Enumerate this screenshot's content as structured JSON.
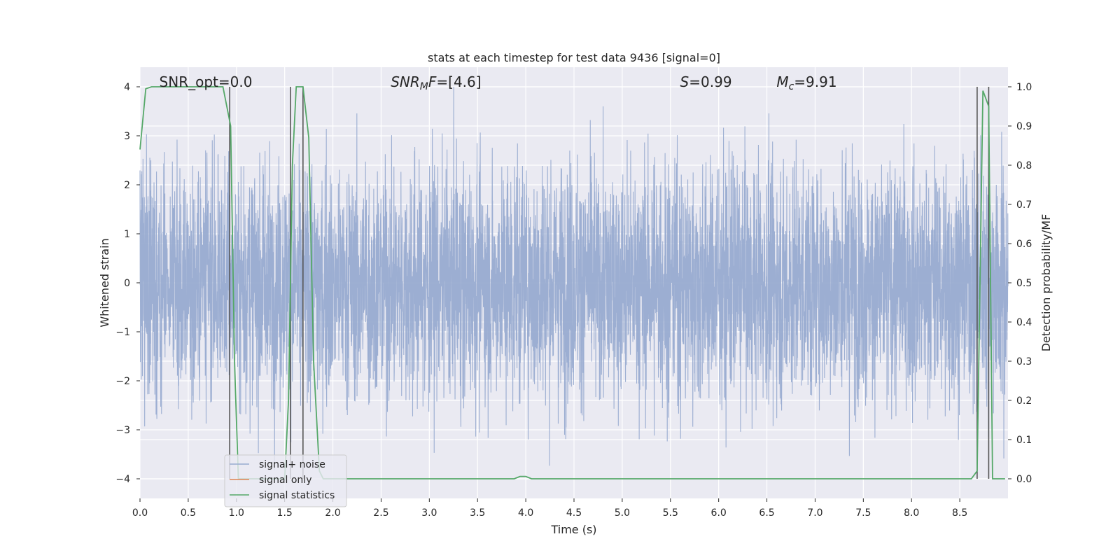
{
  "chart_data": {
    "type": "line",
    "title": "stats at each timestep for test data 9436 [signal=0]",
    "xlabel": "Time (s)",
    "ylabel": "Whitened strain",
    "ylabel_right": "Detection probability/MF",
    "xlim": [
      0.0,
      9.0
    ],
    "ylim": [
      -4.4,
      4.4
    ],
    "ylim_right": [
      -0.05,
      1.05
    ],
    "x_ticks": [
      "0.0",
      "0.5",
      "1.0",
      "1.5",
      "2.0",
      "2.5",
      "3.0",
      "3.5",
      "4.0",
      "4.5",
      "5.0",
      "5.5",
      "6.0",
      "6.5",
      "7.0",
      "7.5",
      "8.0",
      "8.5"
    ],
    "x_tick_values": [
      0.0,
      0.5,
      1.0,
      1.5,
      2.0,
      2.5,
      3.0,
      3.5,
      4.0,
      4.5,
      5.0,
      5.5,
      6.0,
      6.5,
      7.0,
      7.5,
      8.0,
      8.5
    ],
    "y_ticks": [
      "−4",
      "−3",
      "−2",
      "−1",
      "0",
      "1",
      "2",
      "3",
      "4"
    ],
    "y_tick_values": [
      -4,
      -3,
      -2,
      -1,
      0,
      1,
      2,
      3,
      4
    ],
    "y_right_ticks": [
      "0.0",
      "0.1",
      "0.2",
      "0.3",
      "0.4",
      "0.5",
      "0.6",
      "0.7",
      "0.8",
      "0.9",
      "1.0"
    ],
    "y_right_tick_values": [
      0.0,
      0.1,
      0.2,
      0.3,
      0.4,
      0.5,
      0.6,
      0.7,
      0.8,
      0.9,
      1.0
    ],
    "grid": true,
    "legend_position": "bottom-left",
    "annotations": [
      {
        "text": "SNR_opt=0.0",
        "x": 0.2
      },
      {
        "text": "SNR",
        "sub": "M",
        "suffix": "F=[4.6]",
        "italic": true,
        "x": 2.6
      },
      {
        "text": "S",
        "suffix": "=0.99",
        "italic": true,
        "x": 5.6
      },
      {
        "text": "M",
        "sub": "c",
        "suffix": "=9.91",
        "italic": true,
        "x": 6.6
      }
    ],
    "vlines": [
      0.93,
      1.56,
      1.69,
      8.68,
      8.8
    ],
    "series": [
      {
        "name": "signal+ noise",
        "color": "#98abd0",
        "noise_amplitude": 1.6,
        "extreme_amplitude": 4.0
      },
      {
        "name": "signal only",
        "color": "#dd8452",
        "values": []
      },
      {
        "name": "signal statistics",
        "color": "#55a868",
        "axis": "right",
        "x": [
          0.0,
          0.06,
          0.12,
          0.2,
          0.3,
          0.5,
          0.7,
          0.78,
          0.86,
          0.94,
          0.98,
          1.02,
          1.1,
          1.2,
          1.4,
          1.5,
          1.54,
          1.58,
          1.62,
          1.66,
          1.69,
          1.75,
          1.8,
          1.86,
          1.9,
          2.0,
          3.0,
          3.88,
          3.94,
          4.0,
          4.06,
          4.2,
          5.0,
          6.0,
          7.0,
          8.0,
          8.62,
          8.68,
          8.74,
          8.8,
          8.84,
          8.9,
          8.97
        ],
        "values": [
          0.84,
          0.995,
          1.0,
          1.0,
          1.0,
          1.0,
          1.0,
          1.0,
          1.0,
          0.9,
          0.3,
          0.0,
          0.0,
          0.0,
          0.0,
          0.0,
          0.2,
          0.8,
          1.0,
          1.0,
          1.0,
          0.87,
          0.3,
          0.02,
          0.0,
          0.0,
          0.0,
          0.0,
          0.006,
          0.006,
          0.0,
          0.0,
          0.0,
          0.0,
          0.0,
          0.0,
          0.0,
          0.02,
          0.99,
          0.95,
          0.0,
          0.0,
          0.0
        ]
      }
    ]
  }
}
